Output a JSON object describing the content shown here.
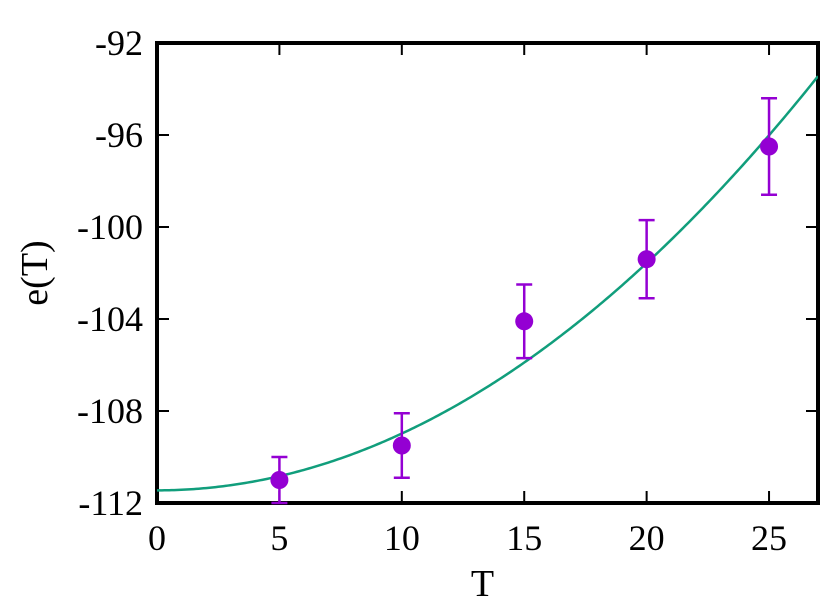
{
  "chart_data": {
    "type": "scatter",
    "xlabel": "T",
    "ylabel": "e(T)",
    "xlim": [
      0,
      27
    ],
    "ylim": [
      -112,
      -92
    ],
    "x_ticks": [
      0,
      5,
      10,
      15,
      20,
      25
    ],
    "y_ticks": [
      -112,
      -108,
      -104,
      -100,
      -96,
      -92
    ],
    "x_tick_labels": [
      "0",
      "5",
      "10",
      "15",
      "20",
      "25"
    ],
    "y_tick_labels": [
      "-112",
      "-108",
      "-104",
      "-100",
      "-96",
      "-92"
    ],
    "grid": false,
    "series": [
      {
        "kind": "points-with-error-bars",
        "color": "#9400d3",
        "points": [
          {
            "x": 5,
            "y": -111.0,
            "err": 1.0
          },
          {
            "x": 10,
            "y": -109.5,
            "err": 1.4
          },
          {
            "x": 15,
            "y": -104.1,
            "err": 1.6
          },
          {
            "x": 20,
            "y": -101.4,
            "err": 1.7
          },
          {
            "x": 25,
            "y": -96.5,
            "err": 2.1
          }
        ]
      },
      {
        "kind": "fit-curve",
        "color": "#119e7c",
        "function": "quadratic",
        "coefficients": {
          "a": -111.45,
          "b": 0,
          "c": 0.0247
        }
      }
    ]
  }
}
